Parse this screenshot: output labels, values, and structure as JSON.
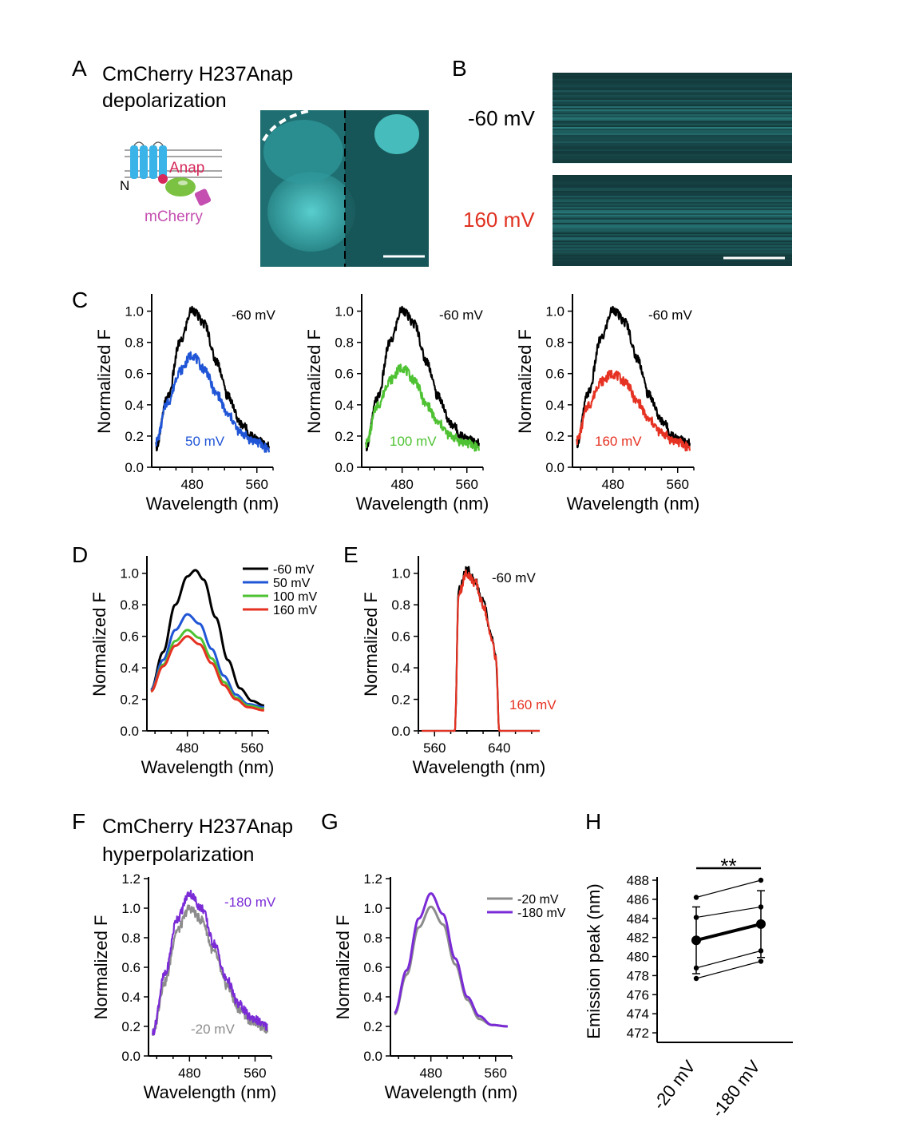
{
  "figure": {
    "panel_A": {
      "letter": "A",
      "title_line1": "CmCherry H237Anap",
      "title_line2": "depolarization",
      "schematic": {
        "n_label": "N",
        "anap_label": "Anap",
        "mcherry_label": "mCherry"
      },
      "colors": {
        "helix": "#3ab4e8",
        "anap": "#d6285a",
        "green_domain": "#7cc242",
        "mcherry": "#c44fb0",
        "image": "#3fb8b8"
      }
    },
    "panel_B": {
      "letter": "B",
      "label_top": "-60 mV",
      "label_bottom": "160 mV",
      "label_bottom_color": "#e03020"
    },
    "panel_F": {
      "letter": "F",
      "title_line1": "CmCherry H237Anap",
      "title_line2": "hyperpolarization"
    },
    "panel_H": {
      "letter": "H",
      "significance": "**"
    }
  },
  "chart_data": [
    {
      "id": "C1",
      "panel": "C",
      "type": "line",
      "noisy": true,
      "xlabel": "Wavelength (nm)",
      "ylabel": "Normalized F",
      "xlim": [
        430,
        580
      ],
      "ylim": [
        0,
        1.1
      ],
      "xticks": [
        480,
        560
      ],
      "yticks": [
        0.0,
        0.2,
        0.4,
        0.6,
        0.8,
        1.0
      ],
      "series": [
        {
          "name": "-60 mV",
          "color": "#000000",
          "x": [
            435,
            450,
            465,
            480,
            495,
            510,
            525,
            540,
            555,
            575
          ],
          "y": [
            0.13,
            0.45,
            0.8,
            1.01,
            0.92,
            0.68,
            0.45,
            0.28,
            0.2,
            0.13
          ]
        },
        {
          "name": "50 mV",
          "color": "#1f55d6",
          "x": [
            435,
            450,
            465,
            480,
            495,
            510,
            525,
            540,
            555,
            575
          ],
          "y": [
            0.16,
            0.42,
            0.62,
            0.72,
            0.63,
            0.47,
            0.33,
            0.22,
            0.17,
            0.12
          ]
        }
      ]
    },
    {
      "id": "C2",
      "panel": "C",
      "type": "line",
      "noisy": true,
      "xlabel": "Wavelength (nm)",
      "ylabel": "Normalized F",
      "xlim": [
        430,
        580
      ],
      "ylim": [
        0,
        1.1
      ],
      "xticks": [
        480,
        560
      ],
      "yticks": [
        0.0,
        0.2,
        0.4,
        0.6,
        0.8,
        1.0
      ],
      "series": [
        {
          "name": "-60 mV",
          "color": "#000000",
          "x": [
            435,
            450,
            465,
            480,
            495,
            510,
            525,
            540,
            555,
            575
          ],
          "y": [
            0.13,
            0.45,
            0.8,
            1.01,
            0.92,
            0.68,
            0.45,
            0.28,
            0.2,
            0.15
          ]
        },
        {
          "name": "100 mV",
          "color": "#4ec232",
          "x": [
            435,
            450,
            465,
            480,
            495,
            510,
            525,
            540,
            555,
            575
          ],
          "y": [
            0.15,
            0.4,
            0.56,
            0.64,
            0.56,
            0.4,
            0.28,
            0.2,
            0.16,
            0.13
          ]
        }
      ]
    },
    {
      "id": "C3",
      "panel": "C",
      "type": "line",
      "noisy": true,
      "xlabel": "Wavelength (nm)",
      "ylabel": "Normalized F",
      "xlim": [
        430,
        580
      ],
      "ylim": [
        0,
        1.1
      ],
      "xticks": [
        480,
        560
      ],
      "yticks": [
        0.0,
        0.2,
        0.4,
        0.6,
        0.8,
        1.0
      ],
      "series": [
        {
          "name": "-60 mV",
          "color": "#000000",
          "x": [
            435,
            450,
            465,
            480,
            495,
            510,
            525,
            540,
            555,
            575
          ],
          "y": [
            0.15,
            0.48,
            0.82,
            1.01,
            0.93,
            0.7,
            0.46,
            0.3,
            0.2,
            0.15
          ]
        },
        {
          "name": "160 mV",
          "color": "#e63222",
          "x": [
            435,
            450,
            465,
            480,
            495,
            510,
            525,
            540,
            555,
            575
          ],
          "y": [
            0.17,
            0.4,
            0.55,
            0.6,
            0.55,
            0.42,
            0.3,
            0.22,
            0.17,
            0.13
          ]
        }
      ]
    },
    {
      "id": "D",
      "panel": "D",
      "type": "line",
      "noisy": false,
      "xlabel": "Wavelength (nm)",
      "ylabel": "Normalized F",
      "xlim": [
        430,
        580
      ],
      "ylim": [
        0,
        1.1
      ],
      "xticks": [
        480,
        560
      ],
      "yticks": [
        0.0,
        0.2,
        0.4,
        0.6,
        0.8,
        1.0
      ],
      "legend": "top-right",
      "series": [
        {
          "name": "-60 mV",
          "color": "#000000",
          "x": [
            435,
            450,
            465,
            480,
            490,
            500,
            515,
            530,
            545,
            560,
            575
          ],
          "y": [
            0.26,
            0.5,
            0.8,
            0.98,
            1.02,
            0.96,
            0.72,
            0.45,
            0.27,
            0.19,
            0.16
          ]
        },
        {
          "name": "50 mV",
          "color": "#1f55d6",
          "x": [
            435,
            450,
            465,
            480,
            495,
            510,
            525,
            540,
            555,
            575
          ],
          "y": [
            0.26,
            0.45,
            0.64,
            0.74,
            0.68,
            0.52,
            0.35,
            0.23,
            0.17,
            0.15
          ]
        },
        {
          "name": "100 mV",
          "color": "#4ec232",
          "x": [
            435,
            450,
            465,
            480,
            495,
            510,
            525,
            540,
            555,
            575
          ],
          "y": [
            0.25,
            0.42,
            0.57,
            0.64,
            0.59,
            0.46,
            0.31,
            0.21,
            0.16,
            0.14
          ]
        },
        {
          "name": "160 mV",
          "color": "#e63222",
          "x": [
            435,
            450,
            465,
            480,
            495,
            510,
            525,
            540,
            555,
            575
          ],
          "y": [
            0.25,
            0.41,
            0.54,
            0.6,
            0.55,
            0.43,
            0.29,
            0.2,
            0.15,
            0.13
          ]
        }
      ]
    },
    {
      "id": "E",
      "panel": "E",
      "type": "line",
      "noisy": true,
      "xlabel": "Wavelength (nm)",
      "ylabel": "Normalized F",
      "xlim": [
        540,
        690
      ],
      "ylim": [
        0,
        1.1
      ],
      "xticks": [
        560,
        640
      ],
      "yticks": [
        0.0,
        0.2,
        0.4,
        0.6,
        0.8,
        1.0
      ],
      "series": [
        {
          "name": "-60 mV",
          "color": "#000000",
          "x": [
            544,
            585,
            590,
            600,
            610,
            620,
            630,
            636,
            640,
            690
          ],
          "y": [
            0.0,
            0.0,
            0.9,
            1.02,
            0.95,
            0.82,
            0.6,
            0.45,
            0.0,
            0.0
          ]
        },
        {
          "name": "160 mV",
          "color": "#e63222",
          "x": [
            544,
            585,
            590,
            600,
            610,
            620,
            630,
            636,
            640,
            690
          ],
          "y": [
            0.0,
            0.0,
            0.88,
            1.0,
            0.94,
            0.8,
            0.6,
            0.45,
            0.0,
            0.0
          ]
        }
      ]
    },
    {
      "id": "F",
      "panel": "F",
      "type": "line",
      "noisy": true,
      "xlabel": "Wavelength (nm)",
      "ylabel": "Normalized F",
      "xlim": [
        430,
        580
      ],
      "ylim": [
        0,
        1.2
      ],
      "xticks": [
        480,
        560
      ],
      "yticks": [
        0.0,
        0.2,
        0.4,
        0.6,
        0.8,
        1.0,
        1.2
      ],
      "series": [
        {
          "name": "-20 mV",
          "color": "#8c8c8c",
          "x": [
            435,
            450,
            465,
            480,
            495,
            510,
            525,
            540,
            555,
            575
          ],
          "y": [
            0.15,
            0.5,
            0.85,
            1.0,
            0.92,
            0.7,
            0.48,
            0.32,
            0.24,
            0.18
          ]
        },
        {
          "name": "-180 mV",
          "color": "#7a2bd6",
          "x": [
            435,
            450,
            465,
            480,
            495,
            510,
            525,
            540,
            555,
            575
          ],
          "y": [
            0.16,
            0.55,
            0.93,
            1.1,
            1.0,
            0.76,
            0.52,
            0.35,
            0.26,
            0.2
          ]
        }
      ]
    },
    {
      "id": "G",
      "panel": "G",
      "type": "line",
      "noisy": false,
      "xlabel": "Wavelength (nm)",
      "ylabel": "Normalized F",
      "xlim": [
        430,
        580
      ],
      "ylim": [
        0,
        1.2
      ],
      "xticks": [
        480,
        560
      ],
      "yticks": [
        0.0,
        0.2,
        0.4,
        0.6,
        0.8,
        1.0,
        1.2
      ],
      "legend": "top-right",
      "series": [
        {
          "name": "-20 mV",
          "color": "#8c8c8c",
          "x": [
            435,
            450,
            465,
            480,
            495,
            510,
            525,
            540,
            555,
            575
          ],
          "y": [
            0.28,
            0.55,
            0.87,
            1.01,
            0.89,
            0.62,
            0.38,
            0.25,
            0.21,
            0.2
          ]
        },
        {
          "name": "-180 mV",
          "color": "#7a2bd6",
          "x": [
            435,
            450,
            465,
            480,
            495,
            510,
            525,
            540,
            555,
            575
          ],
          "y": [
            0.29,
            0.58,
            0.93,
            1.1,
            0.96,
            0.66,
            0.4,
            0.27,
            0.21,
            0.2
          ]
        }
      ]
    },
    {
      "id": "H",
      "panel": "H",
      "type": "scatter",
      "ylabel": "Emission peak (nm)",
      "categories": [
        "-20 mV",
        "-180 mV"
      ],
      "ylim": [
        471,
        488
      ],
      "yticks": [
        472,
        474,
        476,
        478,
        480,
        482,
        484,
        486,
        488
      ],
      "paired_cells": [
        [
          486.2,
          488.0
        ],
        [
          484.1,
          485.2
        ],
        [
          481.8,
          483.5
        ],
        [
          478.8,
          480.6
        ],
        [
          477.7,
          479.5
        ]
      ],
      "mean": [
        481.7,
        483.4
      ],
      "sd": [
        3.5,
        3.5
      ]
    }
  ]
}
